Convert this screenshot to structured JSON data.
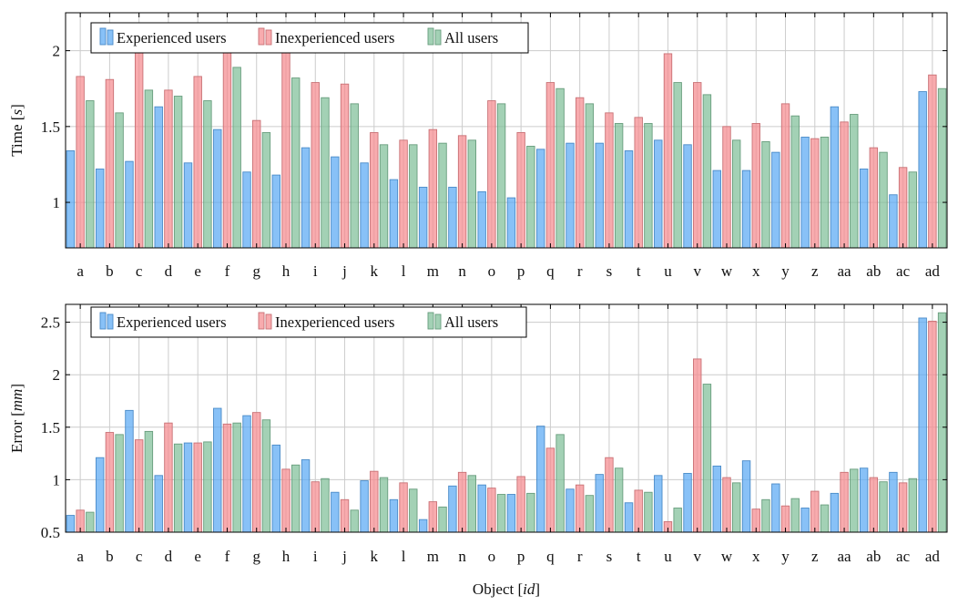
{
  "chart_data": [
    {
      "type": "bar",
      "ylabel": "Time [s]",
      "ylabel_parts": [
        "Time [",
        "s",
        "]"
      ],
      "xlabel": "",
      "ylim": [
        0.7,
        2.25
      ],
      "yticks": [
        1,
        1.5,
        2
      ],
      "ytick_labels": [
        "1",
        "1.5",
        "2"
      ],
      "grid": true,
      "legend_position": "top-left",
      "categories": [
        "a",
        "b",
        "c",
        "d",
        "e",
        "f",
        "g",
        "h",
        "i",
        "j",
        "k",
        "l",
        "m",
        "n",
        "o",
        "p",
        "q",
        "r",
        "s",
        "t",
        "u",
        "v",
        "w",
        "x",
        "y",
        "z",
        "aa",
        "ab",
        "ac",
        "ad"
      ],
      "series": [
        {
          "name": "Experienced users",
          "color": "#5aa9f4",
          "values": [
            1.34,
            1.22,
            1.27,
            1.63,
            1.26,
            1.48,
            1.2,
            1.18,
            1.36,
            1.3,
            1.26,
            1.15,
            1.1,
            1.1,
            1.07,
            1.03,
            1.35,
            1.39,
            1.39,
            1.34,
            1.41,
            1.38,
            1.21,
            1.21,
            1.33,
            1.43,
            1.63,
            1.22,
            1.05,
            1.73
          ]
        },
        {
          "name": "Inexperienced users",
          "color": "#f58a8f",
          "values": [
            1.83,
            1.81,
            2.02,
            1.74,
            1.83,
            2.08,
            1.54,
            2.02,
            1.79,
            1.78,
            1.46,
            1.41,
            1.48,
            1.44,
            1.67,
            1.46,
            1.79,
            1.69,
            1.59,
            1.56,
            1.98,
            1.79,
            1.5,
            1.52,
            1.65,
            1.42,
            1.53,
            1.36,
            1.23,
            1.84
          ]
        },
        {
          "name": "All users",
          "color": "#7fbf99",
          "values": [
            1.67,
            1.59,
            1.74,
            1.7,
            1.67,
            1.89,
            1.46,
            1.82,
            1.69,
            1.65,
            1.38,
            1.38,
            1.39,
            1.41,
            1.65,
            1.37,
            1.75,
            1.65,
            1.52,
            1.52,
            1.79,
            1.71,
            1.41,
            1.4,
            1.57,
            1.43,
            1.58,
            1.33,
            1.2,
            1.75
          ]
        }
      ]
    },
    {
      "type": "bar",
      "ylabel": "Error [mm]",
      "ylabel_parts": [
        "Error [",
        "mm",
        "]"
      ],
      "xlabel": "Object [id]",
      "xlabel_parts": [
        "Object [",
        "id",
        "]"
      ],
      "ylim": [
        0.5,
        2.67
      ],
      "yticks": [
        0.5,
        1,
        1.5,
        2,
        2.5
      ],
      "ytick_labels": [
        "0.5",
        "1",
        "1.5",
        "2",
        "2.5"
      ],
      "grid": true,
      "legend_position": "top-left",
      "categories": [
        "a",
        "b",
        "c",
        "d",
        "e",
        "f",
        "g",
        "h",
        "i",
        "j",
        "k",
        "l",
        "m",
        "n",
        "o",
        "p",
        "q",
        "r",
        "s",
        "t",
        "u",
        "v",
        "w",
        "x",
        "y",
        "z",
        "aa",
        "ab",
        "ac",
        "ad"
      ],
      "series": [
        {
          "name": "Experienced users",
          "color": "#5aa9f4",
          "values": [
            0.66,
            1.21,
            1.66,
            1.04,
            1.35,
            1.68,
            1.61,
            1.33,
            1.19,
            0.88,
            0.99,
            0.81,
            0.62,
            0.94,
            0.95,
            0.86,
            1.51,
            0.91,
            1.05,
            0.78,
            1.04,
            1.06,
            1.13,
            1.18,
            0.96,
            0.73,
            0.87,
            1.11,
            1.07,
            2.54
          ]
        },
        {
          "name": "Inexperienced users",
          "color": "#f58a8f",
          "values": [
            0.71,
            1.45,
            1.38,
            1.54,
            1.35,
            1.53,
            1.64,
            1.1,
            0.98,
            0.81,
            1.08,
            0.97,
            0.79,
            1.07,
            0.92,
            1.03,
            1.3,
            0.95,
            1.21,
            0.9,
            0.6,
            2.15,
            1.02,
            0.72,
            0.75,
            0.89,
            1.07,
            1.02,
            0.97,
            2.51
          ]
        },
        {
          "name": "All users",
          "color": "#7fbf99",
          "values": [
            0.69,
            1.43,
            1.46,
            1.34,
            1.36,
            1.54,
            1.57,
            1.14,
            1.01,
            0.71,
            1.02,
            0.91,
            0.74,
            1.04,
            0.86,
            0.87,
            1.43,
            0.85,
            1.11,
            0.88,
            0.73,
            1.91,
            0.97,
            0.81,
            0.82,
            0.76,
            1.1,
            0.98,
            1.01,
            2.59
          ]
        }
      ]
    }
  ]
}
